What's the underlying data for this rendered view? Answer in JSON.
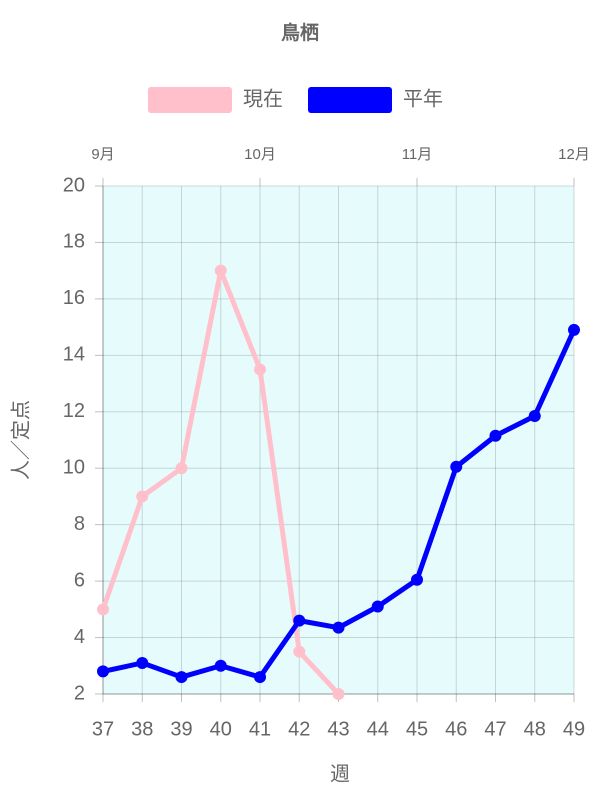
{
  "chart_data": {
    "type": "line",
    "title": "鳥栖",
    "x_label": "週",
    "y_label": "人／定点",
    "x": [
      37,
      38,
      39,
      40,
      41,
      42,
      43,
      44,
      45,
      46,
      47,
      48,
      49
    ],
    "xlim": [
      37,
      49
    ],
    "xticks": [
      37,
      38,
      39,
      40,
      41,
      42,
      43,
      44,
      45,
      46,
      47,
      48,
      49
    ],
    "x2ticks": [
      {
        "value": 37,
        "label": "9月"
      },
      {
        "value": 41,
        "label": "10月"
      },
      {
        "value": 45,
        "label": "11月"
      },
      {
        "value": 49,
        "label": "12月"
      }
    ],
    "ylim": [
      2,
      20
    ],
    "yticks": [
      2,
      4,
      6,
      8,
      10,
      12,
      14,
      16,
      18,
      20
    ],
    "grid": true,
    "background": "#e6fcfc",
    "series": [
      {
        "name": "現在",
        "color": "#ffc0cb",
        "values": [
          5,
          9,
          10,
          17,
          13.5,
          3.5,
          2,
          null,
          null,
          null,
          null,
          null,
          null
        ]
      },
      {
        "name": "平年",
        "color": "#0000ff",
        "values": [
          2.8,
          3.1,
          2.6,
          3.0,
          2.6,
          4.6,
          4.35,
          5.1,
          6.05,
          10.05,
          11.15,
          11.85,
          14.9
        ]
      }
    ]
  }
}
